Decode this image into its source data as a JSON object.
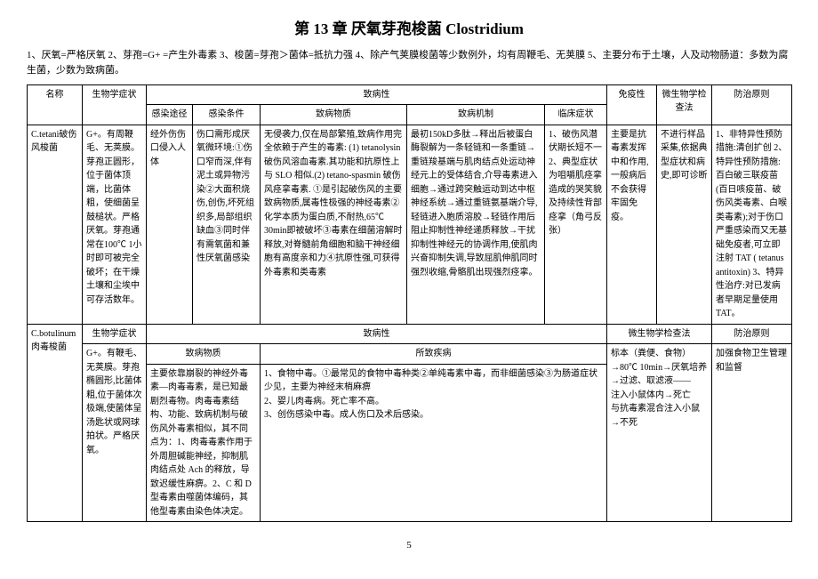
{
  "title": "第 13 章  厌氧芽孢梭菌  Clostridium",
  "intro": "1、厌氧=严格厌氧  2、芽孢=G+ =产生外毒素  3、梭菌=芽孢＞菌体=抵抗力强  4、除产气荚膜梭菌等少数例外，均有周鞭毛、无荚膜  5、主要分布于土壤，人及动物肠道：多数为腐生菌，少数为致病菌。",
  "headers": {
    "name": "名称",
    "bio": "生物学症状",
    "pathogenicity": "致病性",
    "immunity": "免疫性",
    "micro": "微生物学检查法",
    "prevention": "防治原则",
    "route": "感染途径",
    "condition": "感染条件",
    "substance": "致病物质",
    "mechanism": "致病机制",
    "clinical": "临床症状",
    "disease": "所致疾病"
  },
  "row1": {
    "name": "C.tetani破伤风梭菌",
    "bio": "G+。有周鞭毛、无荚膜。芽孢正圆形，位于菌体顶端，比菌体粗，使细菌呈鼓槌状。严格厌氧。芽孢通常在100℃ 1小时即可被完全破坏；在干燥土壤和尘埃中可存活数年。",
    "route": "经外伤伤口侵入人体",
    "condition": "伤口需形成厌氧微环境:①伤口窄而深,伴有泥土或异物污染②大面积烧伤,创伤,坏死组织多,局部组织缺血③同时伴有需氧菌和兼性厌氧菌感染",
    "substance": "无侵袭力,仅在局部繁殖,致病作用完全依赖于产生的毒素: (1) tetanolysin 破伤风溶血毒素.其功能和抗原性上与 SLO 相似.(2) tetano-spasmin 破伤风痉挛毒素. ①是引起破伤风的主要致病物质,属毒性极强的神经毒素②化学本质为蛋白质,不耐热,65℃ 30min即被破坏③毒素在细菌溶解时释放,对脊髓前角细胞和脑干神经细胞有高度亲和力④抗原性强,可获得外毒素和类毒素",
    "mechanism": "最初150kD多肽→释出后被蛋白酶裂解为一条轻链和一条重链→重链羧基端与肌肉结点处运动神经元上的受体结合,介导毒素进入细胞→通过跨突触运动到达中枢神经系统→通过重链氨基端介导,轻链进入胞质溶胶→轻链作用后阻止抑制性神经递质释放→干扰抑制性神经元的协调作用,使肌肉兴奋抑制失调,导致屈肌伸肌同时强烈收缩,骨骼肌出现强烈痉挛。",
    "clinical": "1、破伤风潜伏期长短不一2、典型症状为咀嚼肌痉挛造成的哭笑貌及持续性背部痉挛（角弓反张）",
    "immunity": "主要是抗毒素发挥中和作用,一般病后不会获得牢固免疫。",
    "micro": "不进行样品采集,依据典型症状和病史,即可诊断",
    "prevention": "1、非特异性预防措施:清创扩创 2、特异性预防措施:百白破三联疫苗(百日咳疫苗、破伤风类毒素、白喉类毒素);对于伤口严重感染而又无基础免疫者,可立即注射 TAT ( tetanus antitoxin) 3、特异性治疗:对已发病者早期足量使用TAT。"
  },
  "row2": {
    "name": "C.botulinum肉毒梭菌",
    "bioLabel": "生物学症状",
    "pathLabel": "致病性",
    "microLabel": "微生物学检查法",
    "prevLabel": "防治原则",
    "subLabel": "致病物质",
    "diseaseLabel": "所致疾病",
    "bio": "G+。有鞭毛、无荚膜。芽孢椭圆形,比菌体粗,位于菌体次极端,使菌体呈汤匙状或网球拍状。严格厌氧。",
    "substance": "主要依靠崩裂的神经外毒素—肉毒毒素，是已知最剧烈毒物。肉毒毒素结构、功能、致病机制与破伤风外毒素相似，其不同点为：1、肉毒毒素作用于外周胆碱能神经，抑制肌肉结点处 Ach 的释放，导致迟缓性麻痹。2、C 和 D 型毒素由噬菌体编码，其他型毒素由染色体决定。",
    "disease": "1、食物中毒。①最常见的食物中毒种类②单纯毒素中毒，而非细菌感染③为肠道症状少见，主要为神经末梢麻痹\n2、婴儿肉毒病。死亡率不高。\n3、创伤感染中毒。成人伤口及术后感染。",
    "micro": "标本（粪便、食物）→80℃ 10min→厌氧培养→过滤、取滤液——\n注入小鼠体内→死亡\n与抗毒素混合注入小鼠→不死",
    "prevention": "加强食物卫生管理和监督"
  },
  "pageNum": "5"
}
